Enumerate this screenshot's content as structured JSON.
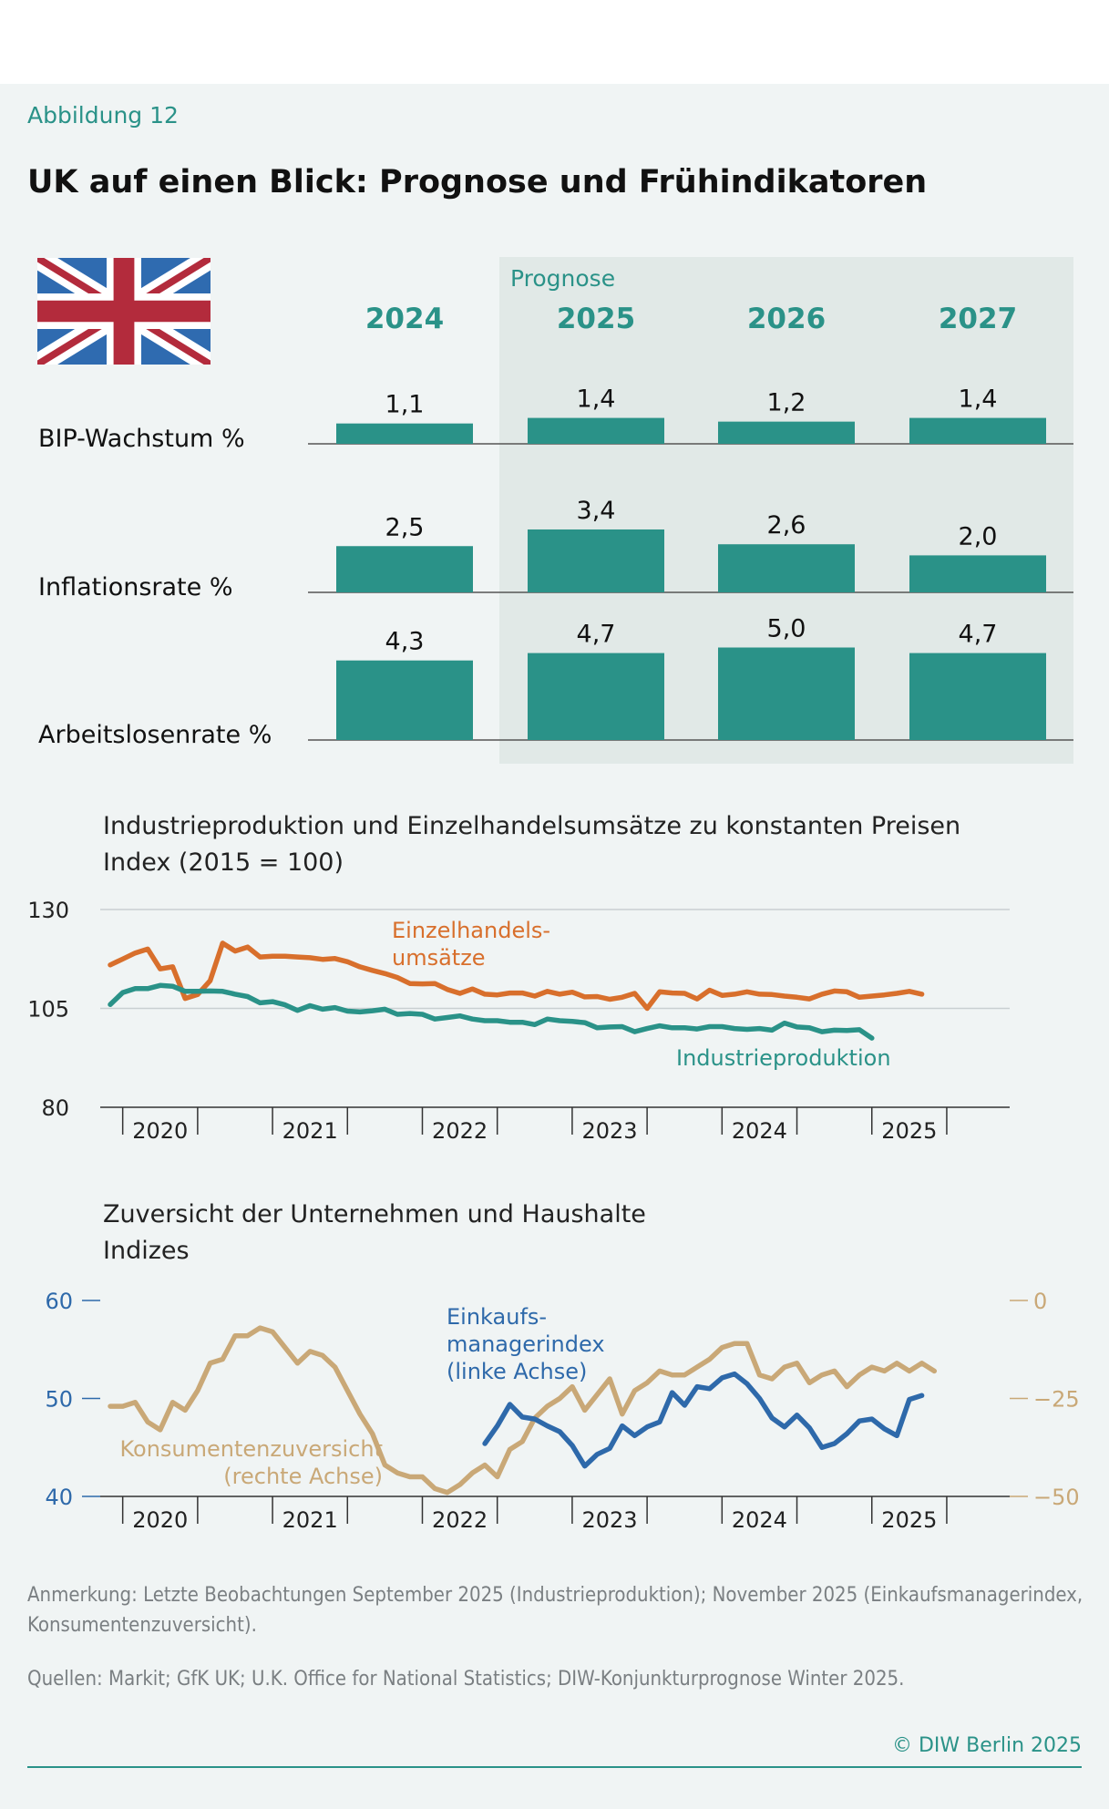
{
  "header": {
    "figure_label": "Abbildung 12",
    "title": "UK auf einen Blick: Prognose und Frühindikatoren"
  },
  "colors": {
    "teal": "#2a9288",
    "forecast_bg": "#e1e9e7",
    "orange": "#d86f2c",
    "tan": "#c9a877",
    "blue": "#2e69aa",
    "teal_line": "#2a9288",
    "axis": "#333333"
  },
  "chart_data": [
    {
      "type": "bar",
      "title": "UK auf einen Blick",
      "forecast_label": "Prognose",
      "categories": [
        "2024",
        "2025",
        "2026",
        "2027"
      ],
      "forecast_years": [
        "2025",
        "2026",
        "2027"
      ],
      "series": [
        {
          "name": "BIP-Wachstum %",
          "values": [
            1.1,
            1.4,
            1.2,
            1.4
          ],
          "labels": [
            "1,1",
            "1,4",
            "1,2",
            "1,4"
          ]
        },
        {
          "name": "Inflationsrate %",
          "values": [
            2.5,
            3.4,
            2.6,
            2.0
          ],
          "labels": [
            "2,5",
            "3,4",
            "2,6",
            "2,0"
          ]
        },
        {
          "name": "Arbeitslosenrate %",
          "values": [
            4.3,
            4.7,
            5.0,
            4.7
          ],
          "labels": [
            "4,3",
            "4,7",
            "5,0",
            "4,7"
          ]
        }
      ]
    },
    {
      "type": "line",
      "title": "Industrieproduktion und Einzelhandelsumsätze zu konstanten Preisen",
      "subtitle": "Index (2015 = 100)",
      "ylim": [
        80,
        130
      ],
      "yticks": [
        "130",
        "105",
        "80"
      ],
      "xlim": [
        2019.85,
        2025.92
      ],
      "x_tick_labels": [
        "2020",
        "2021",
        "2022",
        "2023",
        "2024",
        "2025"
      ],
      "series": [
        {
          "name": "Einzelhandels-umsätze",
          "label_lines": [
            "Einzelhandels-",
            "umsätze"
          ],
          "color": "orange",
          "start": 2019.917,
          "values": [
            116,
            117.5,
            119,
            120,
            115,
            115.5,
            107.5,
            108.5,
            112,
            121.5,
            119.5,
            120.5,
            118,
            118.2,
            118.2,
            118,
            117.8,
            117.4,
            117.6,
            116.8,
            115.5,
            114.6,
            113.8,
            112.8,
            111.3,
            111.2,
            111.3,
            109.8,
            108.8,
            109.9,
            108.6,
            108.4,
            108.9,
            108.9,
            108.1,
            109.3,
            108.6,
            109.1,
            107.9,
            108,
            107.3,
            107.8,
            108.8,
            105,
            109.2,
            108.9,
            108.8,
            107.4,
            109.6,
            108.3,
            108.6,
            109.2,
            108.6,
            108.5,
            108.1,
            107.8,
            107.4,
            108.6,
            109.4,
            109.2,
            107.8,
            108.1,
            108.4,
            108.8,
            109.3,
            108.6
          ]
        },
        {
          "name": "Industrieproduktion",
          "label_lines": [
            "Industrieproduktion"
          ],
          "color": "teal_line",
          "start": 2019.917,
          "values": [
            106,
            109,
            110,
            110,
            110.8,
            110.6,
            109.3,
            109.3,
            109.4,
            109.3,
            108.6,
            108,
            106.4,
            106.7,
            105.9,
            104.5,
            105.7,
            104.8,
            105.2,
            104.3,
            104.1,
            104.4,
            104.8,
            103.5,
            103.7,
            103.5,
            102.3,
            102.7,
            103.1,
            102.3,
            101.9,
            101.9,
            101.5,
            101.5,
            100.9,
            102.3,
            101.9,
            101.7,
            101.4,
            100.1,
            100.3,
            100.4,
            99.1,
            99.9,
            100.6,
            100.1,
            100.1,
            99.8,
            100.4,
            100.4,
            99.9,
            99.7,
            99.9,
            99.5,
            101.3,
            100.3,
            100.1,
            99.1,
            99.5,
            99.4,
            99.6,
            97.5
          ]
        }
      ]
    },
    {
      "type": "line",
      "title": "Zuversicht der Unternehmen und Haushalte",
      "subtitle": "Indizes",
      "ylim_left": [
        40,
        60
      ],
      "yticks_left": [
        "60",
        "50",
        "40"
      ],
      "ylim_right": [
        -50,
        0
      ],
      "yticks_right": [
        "0",
        "−25",
        "−50"
      ],
      "xlim": [
        2019.85,
        2025.92
      ],
      "x_tick_labels": [
        "2020",
        "2021",
        "2022",
        "2023",
        "2024",
        "2025"
      ],
      "series": [
        {
          "name": "Einkaufsmanagerindex (linke Achse)",
          "label_lines": [
            "Einkaufs-",
            "managerindex",
            "(linke Achse)"
          ],
          "color": "blue",
          "axis": "left",
          "start": 2022.417,
          "values": [
            45.4,
            47.2,
            49.4,
            48.1,
            47.9,
            47.2,
            46.6,
            45.2,
            43.1,
            44.3,
            44.9,
            47.2,
            46.2,
            47.1,
            47.6,
            50.6,
            49.3,
            51.2,
            51,
            52.1,
            52.5,
            51.5,
            50,
            48,
            47.1,
            48.3,
            47,
            45,
            45.4,
            46.4,
            47.7,
            47.9,
            46.9,
            46.2,
            49.9,
            50.3
          ]
        },
        {
          "name": "Konsumentenzuversicht (rechte Achse)",
          "label_lines": [
            "Konsumentenzuversicht",
            "(rechte Achse)"
          ],
          "color": "tan",
          "axis": "right",
          "start": 2019.917,
          "values": [
            -27,
            -27,
            -26,
            -31,
            -33,
            -26,
            -28,
            -23,
            -16,
            -15,
            -9,
            -9,
            -7,
            -8,
            -12,
            -16,
            -13,
            -14,
            -17,
            -23,
            -29,
            -34,
            -42,
            -44,
            -45,
            -45,
            -48,
            -49,
            -47,
            -44,
            -42,
            -45,
            -38,
            -36,
            -30,
            -27,
            -25,
            -22,
            -28,
            -24,
            -20,
            -29,
            -23,
            -21,
            -18,
            -19,
            -19,
            -17,
            -15,
            -12,
            -11,
            -11,
            -19,
            -20,
            -17,
            -16,
            -21,
            -19,
            -18,
            -22,
            -19,
            -17,
            -18,
            -16,
            -18,
            -16,
            -18
          ]
        }
      ]
    }
  ],
  "footnotes": {
    "note": "Anmerkung: Letzte Beobachtungen September 2025 (Industrieproduktion); November 2025 (Einkaufsmanagerindex, Konsumentenzuversicht).",
    "sources": "Quellen: Markit; GfK UK; U.K. Office for National Statistics; DIW-Konjunkturprognose Winter 2025.",
    "copyright": "© DIW Berlin 2025"
  }
}
